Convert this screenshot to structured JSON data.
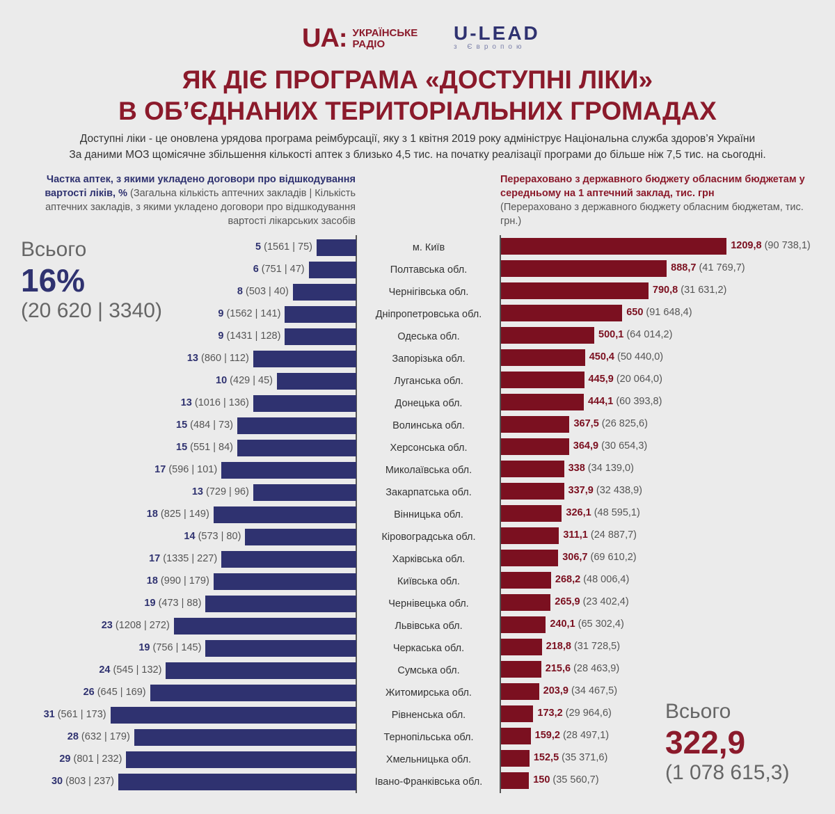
{
  "logos": {
    "ua_mark": "UA:",
    "ua_line1": "УКРАЇНСЬКЕ",
    "ua_line2": "РАДІО",
    "ulead_main": "U-LEAD",
    "ulead_sub": "з Європою"
  },
  "header": {
    "title_line1": "ЯК ДІЄ ПРОГРАМА «ДОСТУПНІ ЛІКИ»",
    "title_line2": "В ОБ’ЄДНАНИХ ТЕРИТОРІАЛЬНИХ ГРОМАДАХ",
    "sub1": "Доступні ліки - це оновлена урядова програма реімбурсації, яку з 1 квітня 2019 року адмініструє Національна служба здоров’я України",
    "sub2": "За даними МОЗ щомісячне збільшення кількості аптек з близько 4,5 тис. на початку реалізації програми до більше ніж 7,5 тис. на сьогодні."
  },
  "left_head": {
    "bold": "Частка аптек, з якими укладено договори про відшкодування вартості ліків, %",
    "normal": " (Загальна кількість аптечних закладів | Кількість аптечних закладів, з якими укладено договори про відшкодування вартості лікарських засобів"
  },
  "right_head": {
    "bold": "Перераховано з державного бюджету обласним бюджетам у середньому на 1 аптечний заклад, тис. грн",
    "normal": "(Перераховано з державного бюджету обласним бюджетам, тис. грн.)"
  },
  "totals": {
    "left_label": "Всього",
    "left_value": "16%",
    "left_detail": "(20 620 | 3340)",
    "right_label": "Всього",
    "right_value": "322,9",
    "right_detail": "(1 078 615,3)"
  },
  "colors": {
    "navy": "#2f3270",
    "maroon": "#7b1020",
    "title": "#8b1a2b"
  },
  "chart_data": {
    "type": "bar",
    "orientation": "horizontal",
    "layout": "butterfly",
    "left_series": {
      "name": "Частка аптек, з якими укладено договори, %",
      "values": [
        5,
        6,
        8,
        9,
        9,
        13,
        10,
        13,
        15,
        15,
        17,
        13,
        18,
        14,
        17,
        18,
        19,
        23,
        19,
        24,
        26,
        31,
        28,
        29,
        30
      ],
      "details": [
        "(1561 | 75)",
        "(751 | 47)",
        "(503 | 40)",
        "(1562 | 141)",
        "(1431 | 128)",
        "(860 | 112)",
        "(429 | 45)",
        "(1016 | 136)",
        "(484 | 73)",
        "(551 | 84)",
        "(596 | 101)",
        "(729 | 96)",
        "(825 | 149)",
        "(573 | 80)",
        "(1335 | 227)",
        "(990 | 179)",
        "(473 | 88)",
        "(1208 | 272)",
        "(756 | 145)",
        "(545 | 132)",
        "(645 | 169)",
        "(561 | 173)",
        "(632 | 179)",
        "(801 | 232)",
        "(803 | 237)"
      ]
    },
    "right_series": {
      "name": "Перераховано на 1 аптечний заклад, тис. грн",
      "values": [
        1209.8,
        888.7,
        790.8,
        650,
        500.1,
        450.4,
        445.9,
        444.1,
        367.5,
        364.9,
        338,
        337.9,
        326.1,
        311.1,
        306.7,
        268.2,
        265.9,
        240.1,
        218.8,
        215.6,
        203.9,
        173.2,
        159.2,
        152.5,
        150
      ],
      "labels": [
        "1209,8",
        "888,7",
        "790,8",
        "650",
        "500,1",
        "450,4",
        "445,9",
        "444,1",
        "367,5",
        "364,9",
        "338",
        "337,9",
        "326,1",
        "311,1",
        "306,7",
        "268,2",
        "265,9",
        "240,1",
        "218,8",
        "215,6",
        "203,9",
        "173,2",
        "159,2",
        "152,5",
        "150"
      ],
      "details": [
        "(90 738,1)",
        "(41 769,7)",
        "(31 631,2)",
        "(91 648,4)",
        "(64 014,2)",
        "(50 440,0)",
        "(20 064,0)",
        "(60 393,8)",
        "(26 825,6)",
        "(30 654,3)",
        "(34 139,0)",
        "(32 438,9)",
        "(48 595,1)",
        "(24 887,7)",
        "(69 610,2)",
        "(48 006,4)",
        "(23 402,4)",
        "(65 302,4)",
        "(31 728,5)",
        "(28 463,9)",
        "(34 467,5)",
        "(29 964,6)",
        "(28 497,1)",
        "(35 371,6)",
        "(35 560,7)"
      ]
    },
    "categories": [
      "м. Київ",
      "Полтавська обл.",
      "Чернігівська обл.",
      "Дніпропетровська обл.",
      "Одеська обл.",
      "Запорізька обл.",
      "Луганська обл.",
      "Донецька обл.",
      "Волинська обл.",
      "Херсонська обл.",
      "Миколаївська обл.",
      "Закарпатська обл.",
      "Вінницька обл.",
      "Кіровоградська обл.",
      "Харківська обл.",
      "Київська обл.",
      "Чернівецька обл.",
      "Львівська обл.",
      "Черкаська обл.",
      "Сумська обл.",
      "Житомирська обл.",
      "Рівненська обл.",
      "Тернопільська обл.",
      "Хмельницька обл.",
      "Івано-Франківська обл."
    ]
  }
}
